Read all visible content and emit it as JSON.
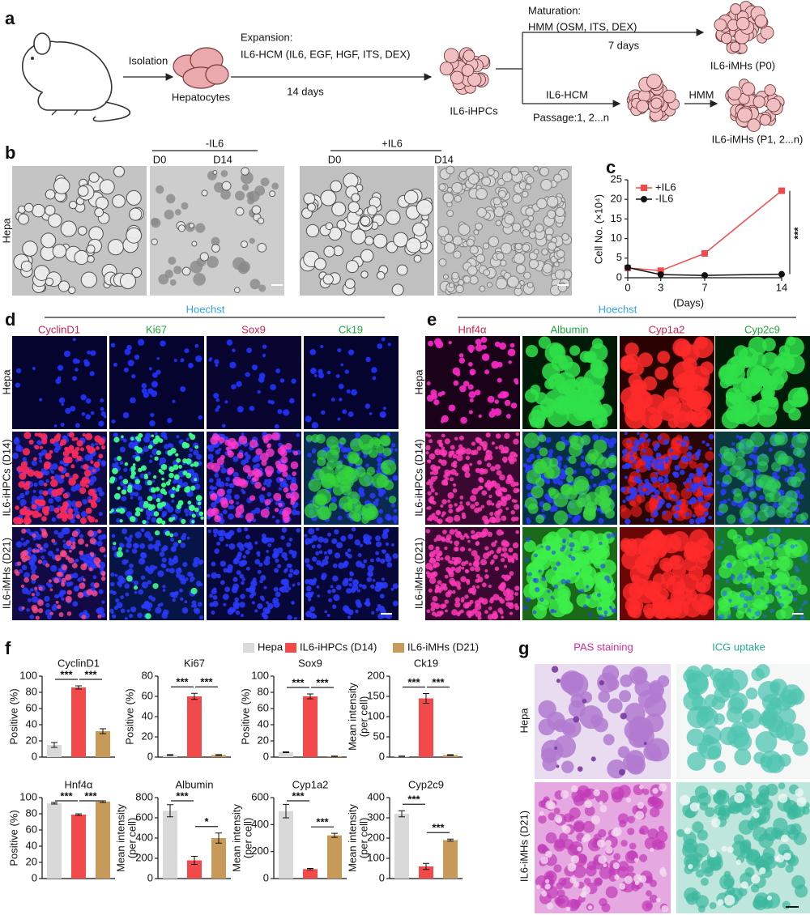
{
  "figure": {
    "a": {
      "label": "a",
      "isolation": "Isolation",
      "hepatocytes": "Hepatocytes",
      "expansion": "Expansion:",
      "expansion_medium": "IL6-HCM (IL6, EGF, HGF, ITS, DEX)",
      "expansion_time": "14 days",
      "ihpcs": "IL6-iHPCs",
      "maturation": "Maturation:",
      "maturation_medium": "HMM (OSM, ITS, DEX)",
      "maturation_time": "7 days",
      "imhs_p0": "IL6-iMHs (P0)",
      "passage_medium": "IL6-HCM",
      "passage": "Passage:1, 2...n",
      "hmm": "HMM",
      "imhs_p1": "IL6-iMHs (P1, 2...n)"
    },
    "b": {
      "label": "b",
      "minus": "-IL6",
      "plus": "+IL6",
      "d0": "D0",
      "d14": "D14",
      "row": "Hepa"
    },
    "d": {
      "label": "d",
      "stain": "Hoechst",
      "columns": [
        "CyclinD1",
        "Ki67",
        "Sox9",
        "Ck19"
      ],
      "rows": [
        "Hepa",
        "IL6-iHPCs (D14)",
        "IL6-iMHs (D21)"
      ]
    },
    "e": {
      "label": "e",
      "stain": "Hoechst",
      "columns": [
        "Hnf4α",
        "Albumin",
        "Cyp1a2",
        "Cyp2c9"
      ],
      "rows": [
        "Hepa",
        "IL6-iHPCs (D14)",
        "IL6-iMHs (D21)"
      ]
    },
    "f": {
      "label": "f",
      "legend": [
        {
          "name": "Hepa",
          "color": "#d9d9d9"
        },
        {
          "name": "IL6-iHPCs (D14)",
          "color": "#f24a4a"
        },
        {
          "name": "IL6-iMHs (D21)",
          "color": "#c79a5a"
        }
      ]
    },
    "g": {
      "label": "g",
      "columns": [
        "PAS staining",
        "ICG uptake"
      ],
      "rows": [
        "Hepa",
        "IL6-iMHs (D21)"
      ]
    }
  },
  "chart_data": [
    {
      "type": "line",
      "panel_label": "c",
      "ylabel": "Cell No. (×10⁴)",
      "xlabel": "(Days)",
      "x": [
        0,
        3,
        7,
        14
      ],
      "xlim": [
        0,
        14
      ],
      "xticks": [
        0,
        3,
        7,
        14
      ],
      "ylim": [
        0,
        25
      ],
      "yticks": [
        0,
        5,
        10,
        15,
        20,
        25
      ],
      "legend": "upper left",
      "significance": "***",
      "series": [
        {
          "name": "+IL6",
          "color": "#f24a4a",
          "marker": "square",
          "values": [
            2.5,
            1.8,
            6.2,
            22.2
          ]
        },
        {
          "name": "-IL6",
          "color": "#111111",
          "marker": "circle",
          "values": [
            2.6,
            0.8,
            0.6,
            0.9
          ]
        }
      ]
    },
    {
      "type": "bar",
      "title": "CyclinD1",
      "ylabel": [
        "Positive (%)"
      ],
      "values": [
        15,
        86,
        32
      ],
      "errors": [
        3,
        2,
        3
      ],
      "ylim": [
        0,
        100
      ],
      "yticks": [
        0,
        20,
        40,
        60,
        80,
        100
      ],
      "significance": [
        "***",
        "***"
      ]
    },
    {
      "type": "bar",
      "title": "Ki67",
      "ylabel": [
        "Positive (%)"
      ],
      "values": [
        2,
        60,
        2
      ],
      "errors": [
        0.5,
        3,
        0.5
      ],
      "ylim": [
        0,
        80
      ],
      "yticks": [
        0,
        20,
        40,
        60,
        80
      ],
      "significance": [
        "***",
        "***"
      ]
    },
    {
      "type": "bar",
      "title": "Sox9",
      "ylabel": [
        "Positive (%)"
      ],
      "values": [
        6,
        75,
        1
      ],
      "errors": [
        0.5,
        3,
        0.3
      ],
      "ylim": [
        0,
        100
      ],
      "yticks": [
        0,
        20,
        40,
        60,
        80,
        100
      ],
      "significance": [
        "***",
        "***"
      ]
    },
    {
      "type": "bar",
      "title": "Ck19",
      "ylabel": [
        "Mean intensity",
        "(per cell)"
      ],
      "values": [
        2,
        145,
        5
      ],
      "errors": [
        0.5,
        12,
        1
      ],
      "ylim": [
        0,
        200
      ],
      "yticks": [
        0,
        50,
        100,
        150,
        200
      ],
      "significance": [
        "***",
        "***"
      ]
    },
    {
      "type": "bar",
      "title": "Hnf4α",
      "ylabel": [
        "Positive (%)"
      ],
      "values": [
        93,
        79,
        95
      ],
      "errors": [
        1,
        1,
        1
      ],
      "ylim": [
        0,
        100
      ],
      "yticks": [
        0,
        20,
        40,
        60,
        80,
        100
      ],
      "significance": [
        "***",
        "***"
      ]
    },
    {
      "type": "bar",
      "title": "Albumin",
      "ylabel": [
        "Mean intensity",
        "(per cell)"
      ],
      "values": [
        670,
        180,
        400
      ],
      "errors": [
        60,
        40,
        50
      ],
      "ylim": [
        0,
        800
      ],
      "yticks": [
        0,
        200,
        400,
        600,
        800
      ],
      "significance": [
        "***",
        "*"
      ]
    },
    {
      "type": "bar",
      "title": "Cyp1a2",
      "ylabel": [
        "Mean intensity",
        "(per cell)"
      ],
      "values": [
        500,
        70,
        320
      ],
      "errors": [
        50,
        5,
        15
      ],
      "ylim": [
        0,
        600
      ],
      "yticks": [
        0,
        200,
        400,
        600
      ],
      "significance": [
        "***",
        "***"
      ]
    },
    {
      "type": "bar",
      "title": "Cyp2c9",
      "ylabel": [
        "Mean intensity",
        "(per cell)"
      ],
      "values": [
        320,
        60,
        190
      ],
      "errors": [
        15,
        15,
        5
      ],
      "ylim": [
        0,
        400
      ],
      "yticks": [
        0,
        100,
        200,
        300,
        400
      ],
      "significance": [
        "***",
        "***"
      ]
    }
  ]
}
